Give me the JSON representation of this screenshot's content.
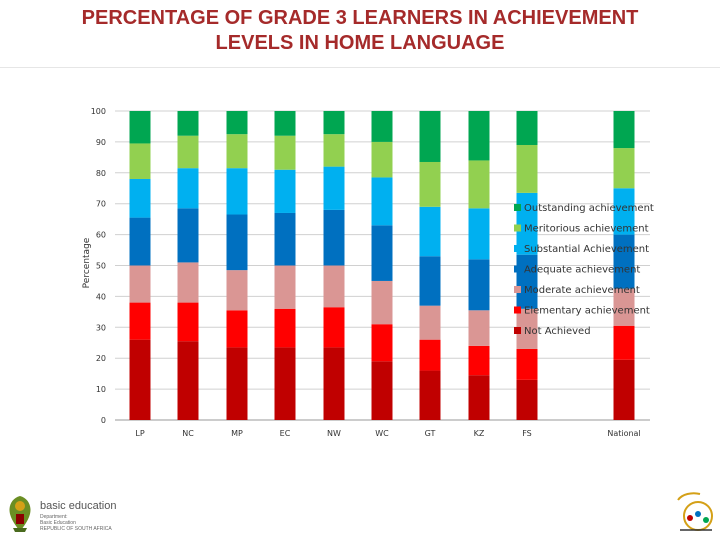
{
  "title_lines": [
    "PERCENTAGE OF GRADE 3 LEARNERS IN ACHIEVEMENT",
    "LEVELS IN HOME LANGUAGE"
  ],
  "chart_data": {
    "type": "bar",
    "stacked": true,
    "categories": [
      "LP",
      "NC",
      "MP",
      "EC",
      "NW",
      "WC",
      "GT",
      "KZ",
      "FS",
      "National"
    ],
    "ylabel": "Percentage",
    "ylim": [
      0,
      100
    ],
    "yticks": [
      0,
      10,
      20,
      30,
      40,
      50,
      60,
      70,
      80,
      90,
      100
    ],
    "grid": true,
    "legend_position": "right",
    "series": [
      {
        "name": "Not Achieved",
        "color": "#c00000",
        "values": [
          26,
          25.5,
          23.5,
          23.5,
          23.5,
          19,
          16,
          14.5,
          13,
          19.5
        ]
      },
      {
        "name": "Elementary achievement",
        "color": "#ff0000",
        "values": [
          12,
          12.5,
          12,
          12.5,
          13,
          12,
          10,
          9.5,
          10,
          11
        ]
      },
      {
        "name": "Moderate achievement",
        "color": "#da9694",
        "values": [
          12,
          13,
          13,
          14,
          13.5,
          14,
          11,
          11.5,
          13,
          12
        ]
      },
      {
        "name": "Adequate achievement",
        "color": "#0070c0",
        "values": [
          15.5,
          17.5,
          18,
          17,
          18,
          18,
          16,
          16.5,
          17.5,
          17.5
        ]
      },
      {
        "name": "Substantial Achievement",
        "color": "#00b0f0",
        "values": [
          12.5,
          13,
          15,
          14,
          14,
          15.5,
          16,
          16.5,
          20,
          15
        ]
      },
      {
        "name": "Meritorious achievement",
        "color": "#92d050",
        "values": [
          11.5,
          10.5,
          11,
          11,
          10.5,
          11.5,
          14.5,
          15.5,
          15.5,
          13
        ]
      },
      {
        "name": "Outstanding achievement",
        "color": "#00a651",
        "values": [
          10.5,
          8,
          7.5,
          8,
          7.5,
          10,
          16.5,
          16,
          11,
          12
        ]
      }
    ]
  },
  "footer": {
    "logo_name": "basic education",
    "logo_sub": [
      "Department:",
      "Basic Education",
      "REPUBLIC OF SOUTH AFRICA"
    ]
  }
}
